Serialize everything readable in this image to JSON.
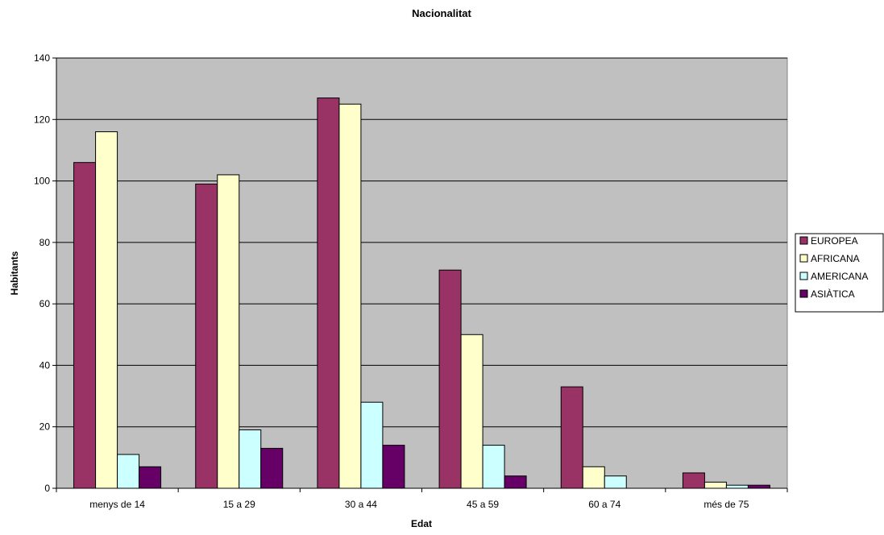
{
  "chart_data": {
    "type": "bar",
    "title": "Nacionalitat",
    "xlabel": "Edat",
    "ylabel": "Habitants",
    "ylim": [
      0,
      140
    ],
    "ytick_step": 20,
    "grid": true,
    "legend_position": "right",
    "plot_background": "#c0c0c0",
    "categories": [
      "menys de 14",
      "15 a 29",
      "30 a 44",
      "45 a 59",
      "60 a 74",
      "més de 75"
    ],
    "series": [
      {
        "name": "EUROPEA",
        "color": "#993366",
        "values": [
          106,
          99,
          127,
          71,
          33,
          5
        ]
      },
      {
        "name": "AFRICANA",
        "color": "#ffffcc",
        "values": [
          116,
          102,
          125,
          50,
          7,
          2
        ]
      },
      {
        "name": "AMERICANA",
        "color": "#ccffff",
        "values": [
          11,
          19,
          28,
          14,
          4,
          1
        ]
      },
      {
        "name": "ASIÀTICA",
        "color": "#660066",
        "values": [
          7,
          13,
          14,
          4,
          0,
          1
        ]
      }
    ]
  }
}
